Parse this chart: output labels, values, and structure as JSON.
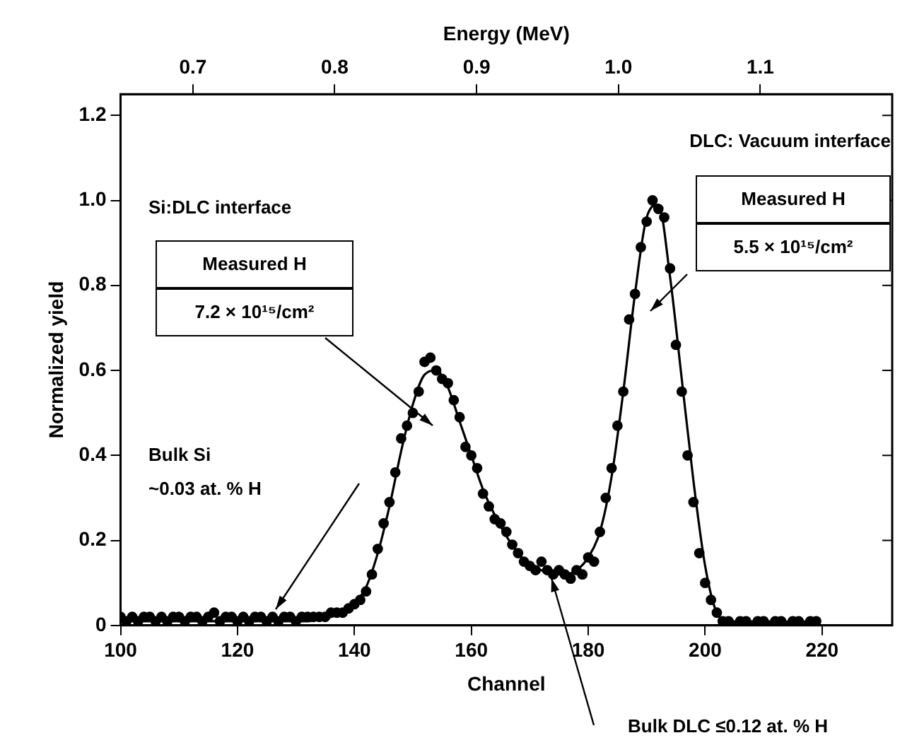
{
  "chart_data": {
    "type": "scatter",
    "xlabel": "Channel",
    "ylabel": "Normalized yield",
    "x2label": "Energy (MeV)",
    "xlim": [
      100,
      232
    ],
    "xticks": [
      100,
      120,
      140,
      160,
      180,
      200,
      220
    ],
    "x2lim": [
      0.649,
      1.193
    ],
    "x2ticks": [
      {
        "value": 0.7,
        "label": "0.7"
      },
      {
        "value": 0.8,
        "label": "0.8"
      },
      {
        "value": 0.9,
        "label": "0.9"
      },
      {
        "value": 1,
        "label": "1.0"
      },
      {
        "value": 1.1,
        "label": "1.1"
      }
    ],
    "ylim": [
      0,
      1.25
    ],
    "yticks": [
      0,
      {
        "value": 0.2,
        "label": "0.2"
      },
      {
        "value": 0.4,
        "label": "0.4"
      },
      {
        "value": 0.6,
        "label": "0.6"
      },
      {
        "value": 0.8,
        "label": "0.8"
      },
      {
        "value": 1,
        "label": "1.0"
      },
      {
        "value": 1.2,
        "label": "1.2"
      }
    ],
    "grid": false,
    "legend": false,
    "series": [
      {
        "type": "scatter",
        "marker": "circle",
        "color": "#000000",
        "x": [
          100,
          101,
          102,
          103,
          104,
          105,
          106,
          107,
          108,
          109,
          110,
          111,
          112,
          113,
          114,
          115,
          116,
          117,
          118,
          119,
          120,
          121,
          122,
          123,
          124,
          125,
          126,
          127,
          128,
          129,
          130,
          131,
          132,
          133,
          134,
          135,
          136,
          137,
          138,
          139,
          140,
          141,
          142,
          143,
          144,
          145,
          146,
          147,
          148,
          149,
          150,
          151,
          152,
          153,
          154,
          155,
          156,
          157,
          158,
          159,
          160,
          161,
          162,
          163,
          164,
          165,
          166,
          167,
          168,
          169,
          170,
          171,
          172,
          173,
          174,
          175,
          176,
          177,
          178,
          179,
          180,
          181,
          182,
          183,
          184,
          185,
          186,
          187,
          188,
          189,
          190,
          191,
          192,
          193,
          194,
          195,
          196,
          197,
          198,
          199,
          200,
          201,
          202,
          203,
          204,
          205,
          206,
          207,
          208,
          209,
          210,
          211,
          212,
          213,
          214,
          215,
          216,
          217,
          218,
          219
        ],
        "values": [
          0.02,
          0.01,
          0.02,
          0.01,
          0.02,
          0.02,
          0.01,
          0.02,
          0.01,
          0.02,
          0.02,
          0.01,
          0.02,
          0.02,
          0.01,
          0.02,
          0.03,
          0.01,
          0.02,
          0.02,
          0.01,
          0.02,
          0.01,
          0.02,
          0.02,
          0.01,
          0.02,
          0.01,
          0.02,
          0.02,
          0.01,
          0.02,
          0.02,
          0.02,
          0.02,
          0.02,
          0.03,
          0.03,
          0.03,
          0.04,
          0.05,
          0.06,
          0.08,
          0.12,
          0.18,
          0.24,
          0.29,
          0.36,
          0.44,
          0.47,
          0.5,
          0.55,
          0.62,
          0.63,
          0.6,
          0.58,
          0.57,
          0.53,
          0.49,
          0.42,
          0.4,
          0.37,
          0.31,
          0.28,
          0.25,
          0.24,
          0.22,
          0.19,
          0.17,
          0.15,
          0.14,
          0.13,
          0.15,
          0.13,
          0.12,
          0.13,
          0.12,
          0.11,
          0.13,
          0.12,
          0.16,
          0.15,
          0.22,
          0.3,
          0.37,
          0.47,
          0.55,
          0.72,
          0.78,
          0.89,
          0.95,
          1.0,
          0.98,
          0.96,
          0.84,
          0.66,
          0.55,
          0.4,
          0.29,
          0.17,
          0.1,
          0.06,
          0.03,
          0.01,
          0.01,
          0.0,
          0.01,
          0.01,
          0.0,
          0.01,
          0.01,
          0.0,
          0.01,
          0.01,
          0.0,
          0.01,
          0.01,
          0.0,
          0.01,
          0.01
        ]
      },
      {
        "type": "line",
        "marker": "none",
        "color": "#000000",
        "x": [
          100,
          104,
          108,
          112,
          116,
          120,
          124,
          128,
          132,
          136,
          138,
          140,
          142,
          144,
          146,
          148,
          150,
          152,
          154,
          156,
          158,
          160,
          162,
          164,
          166,
          168,
          170,
          172,
          174,
          176,
          178,
          180,
          182,
          184,
          186,
          188,
          190,
          192,
          194,
          196,
          198,
          200,
          202,
          204
        ],
        "values": [
          0.01,
          0.01,
          0.01,
          0.01,
          0.01,
          0.01,
          0.01,
          0.01,
          0.01,
          0.02,
          0.03,
          0.05,
          0.09,
          0.17,
          0.28,
          0.41,
          0.52,
          0.59,
          0.6,
          0.56,
          0.48,
          0.4,
          0.32,
          0.26,
          0.21,
          0.17,
          0.14,
          0.13,
          0.12,
          0.12,
          0.13,
          0.16,
          0.22,
          0.35,
          0.55,
          0.78,
          0.96,
          0.99,
          0.82,
          0.58,
          0.34,
          0.14,
          0.03,
          0.01
        ]
      }
    ],
    "annotations": [
      "DLC: Vacuum interface",
      "Si:DLC interface",
      "Measured H",
      "7.2 × 10¹⁵/cm²",
      "Measured H",
      "5.5 × 10¹⁵/cm²",
      "Bulk Si",
      "~0.03 at. % H",
      "Bulk DLC ≤0.12 at. % H"
    ]
  }
}
